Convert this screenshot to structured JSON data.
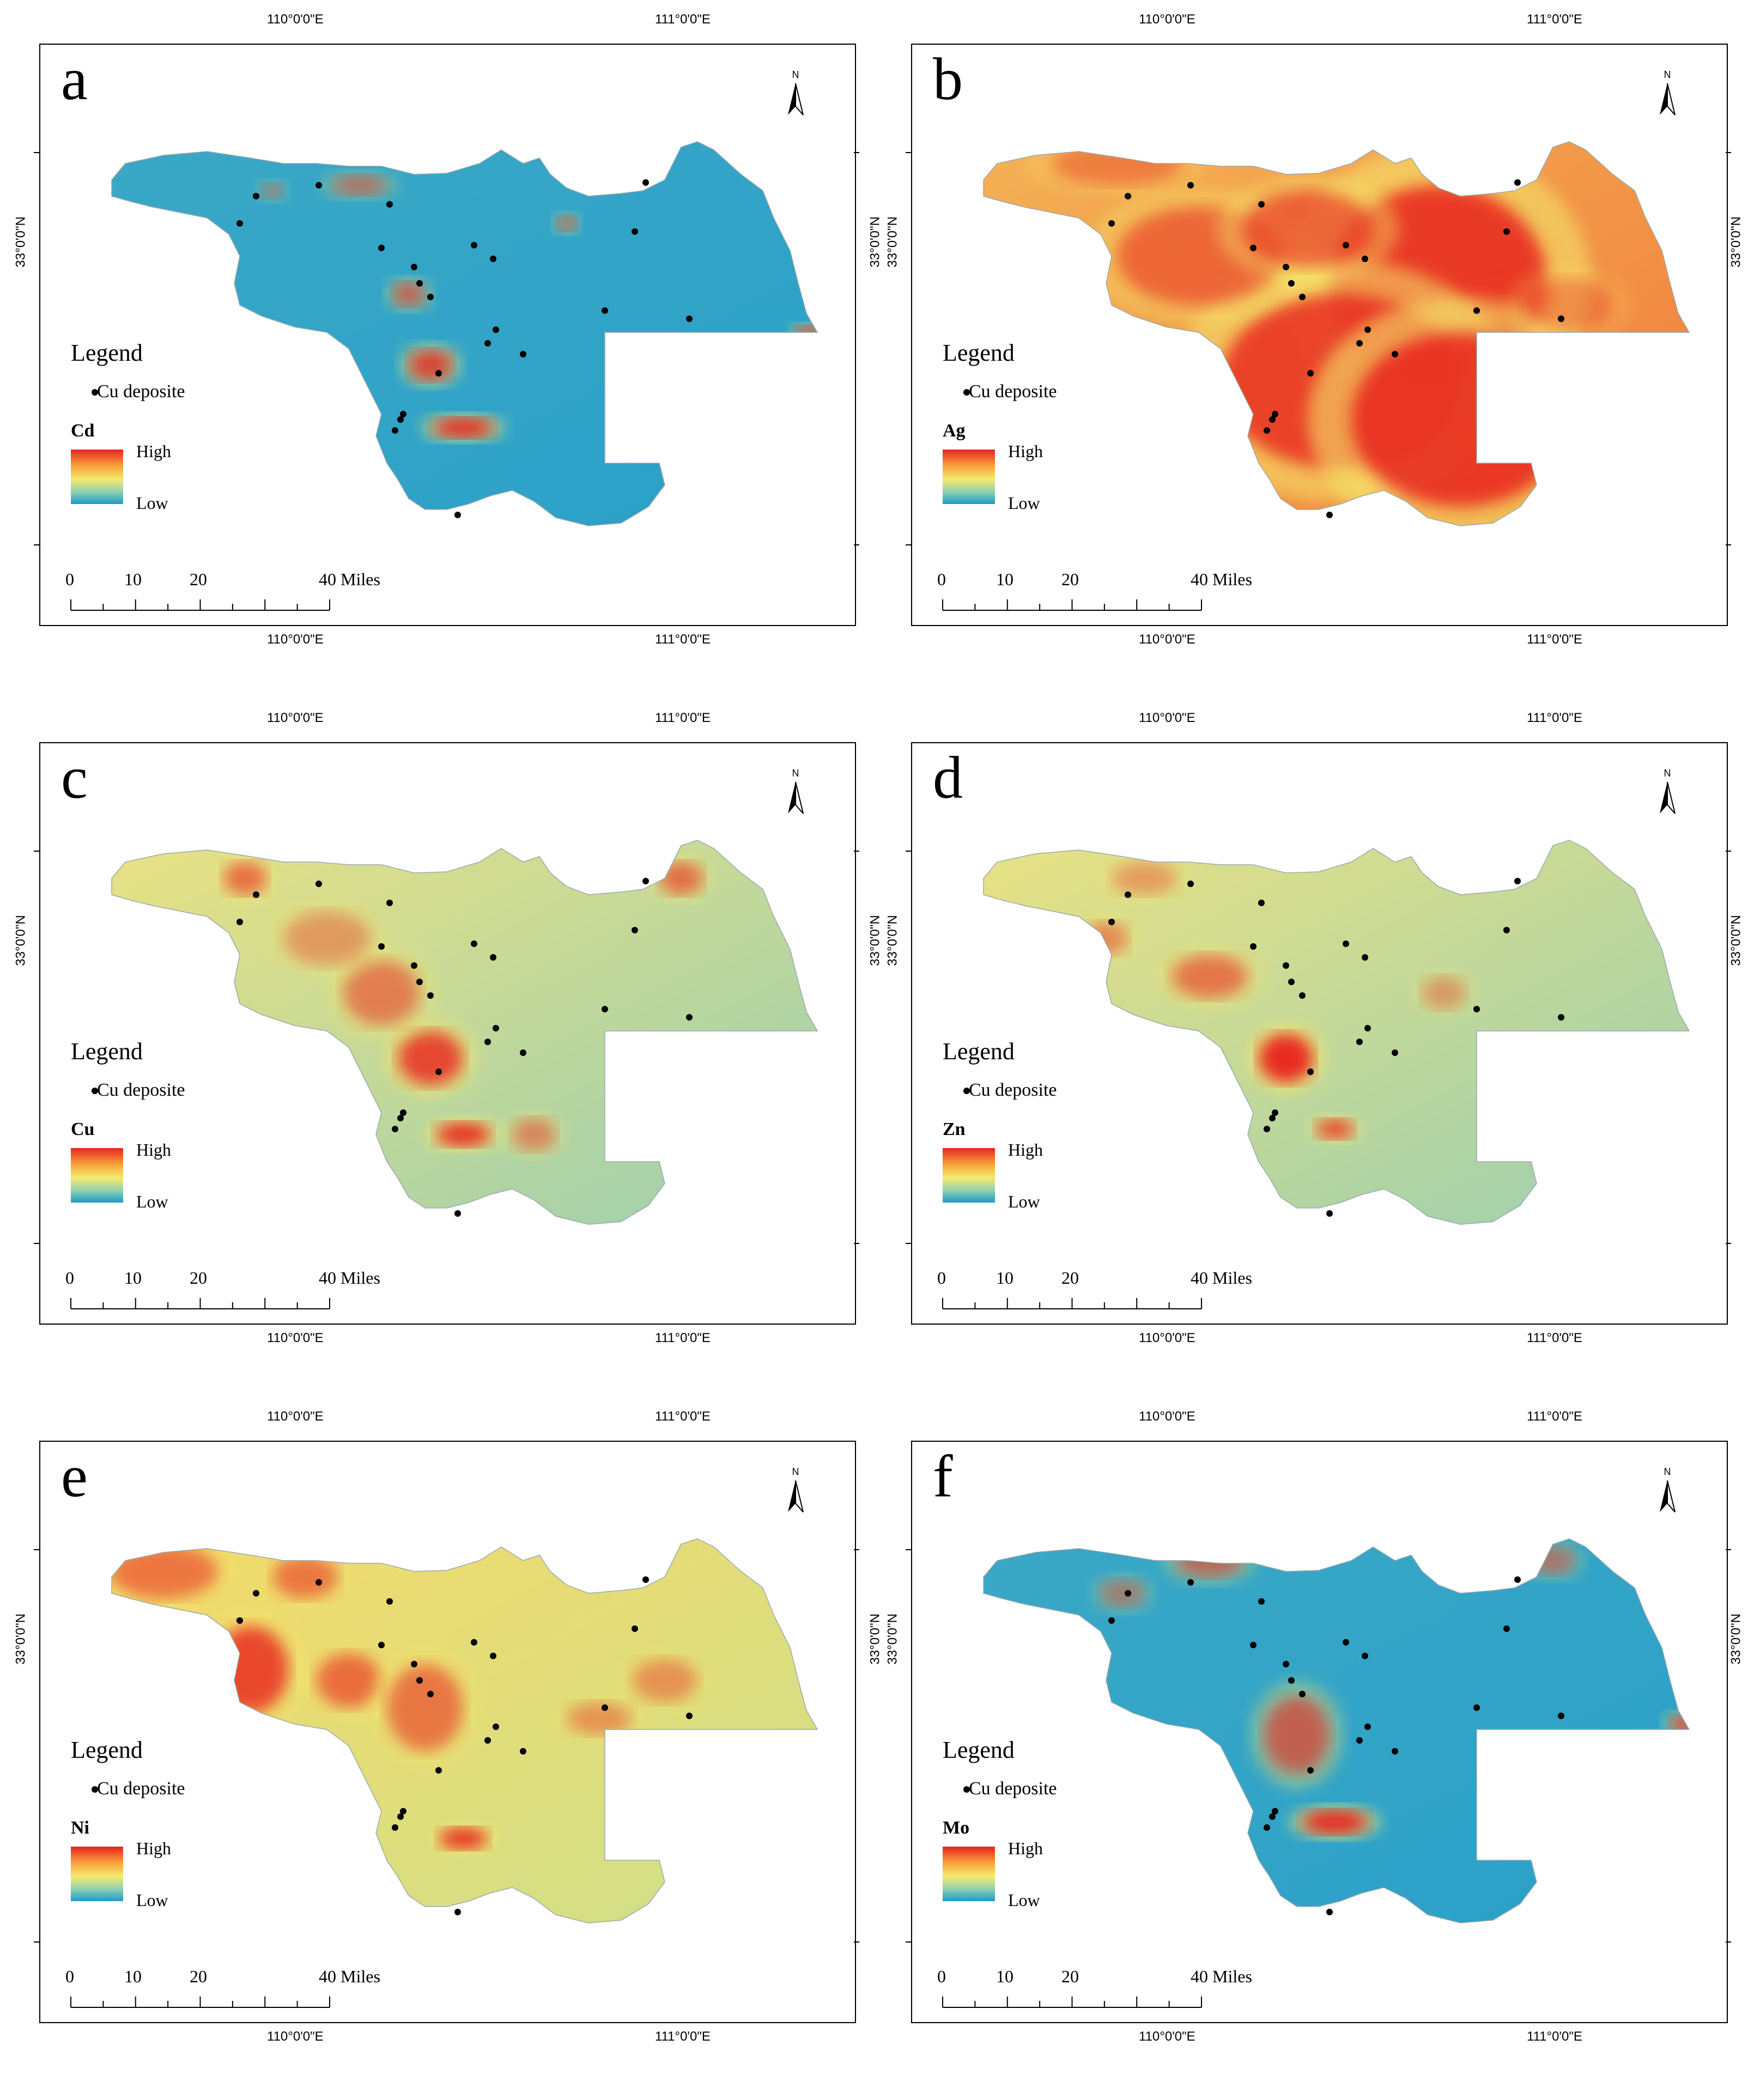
{
  "longitude_labels": [
    "110°0'0\"E",
    "111°0'0\"E"
  ],
  "latitude_label": "33°0'0\"N",
  "north_arrow": {
    "label": "N",
    "icon": "north-arrow-icon"
  },
  "legend": {
    "title": "Legend",
    "deposit_label": "Cu deposite",
    "high_label": "High",
    "low_label": "Low",
    "ramp_colors": [
      "#e8231f",
      "#f7a33c",
      "#f5ea70",
      "#8fd0b0",
      "#1c9bc9"
    ]
  },
  "scale_bar": {
    "ticks": [
      "0",
      "10",
      "20"
    ],
    "end_label": "40 Miles"
  },
  "panels": [
    {
      "letter": "a",
      "element": "Cd",
      "dominant": "low"
    },
    {
      "letter": "b",
      "element": "Ag",
      "dominant": "high"
    },
    {
      "letter": "c",
      "element": "Cu",
      "dominant": "mixed"
    },
    {
      "letter": "d",
      "element": "Zn",
      "dominant": "mixed"
    },
    {
      "letter": "e",
      "element": "Ni",
      "dominant": "mixed-high"
    },
    {
      "letter": "f",
      "element": "Mo",
      "dominant": "low"
    }
  ]
}
